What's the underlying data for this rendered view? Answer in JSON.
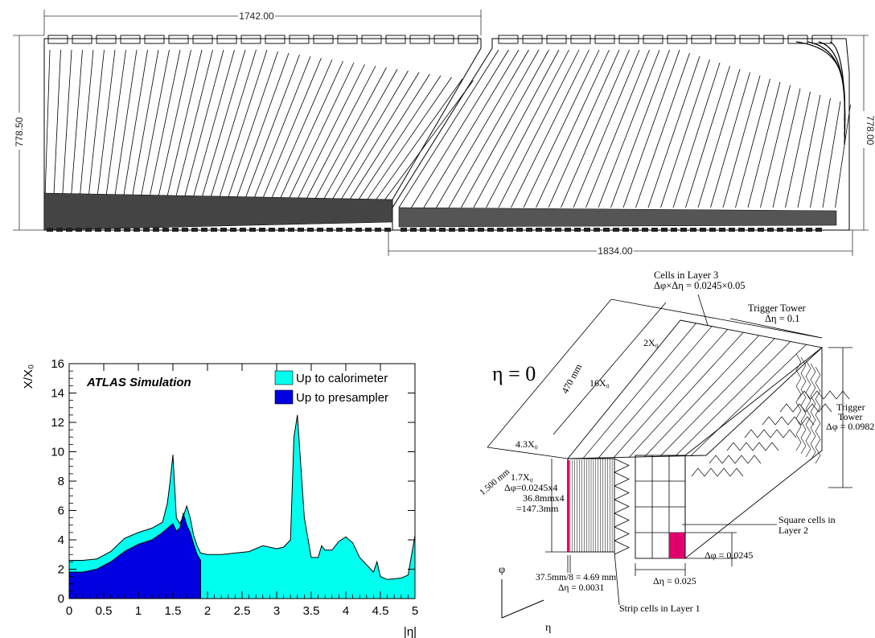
{
  "top_drawing": {
    "dim_top": "1742.00",
    "dim_left": "778.50",
    "dim_right": "778.00",
    "dim_bottom": "1834.00"
  },
  "colors": {
    "calorimeter": "#00ffee",
    "presampler": "#0000e0",
    "highlight": "#e0006b"
  },
  "chart_data": {
    "type": "area",
    "ylabel": "X/X₀",
    "xlabel": "|η|",
    "annotation": "ATLAS Simulation",
    "xlim": [
      0,
      5
    ],
    "ylim": [
      0,
      16
    ],
    "xticks": [
      "0",
      "0.5",
      "1",
      "1.5",
      "2",
      "2.5",
      "3",
      "3.5",
      "4",
      "4.5",
      "5"
    ],
    "yticks": [
      "0",
      "2",
      "4",
      "6",
      "8",
      "10",
      "12",
      "14",
      "16"
    ],
    "legend_position": "top-right",
    "series": [
      {
        "name": "Up to calorimeter",
        "x": [
          0,
          0.2,
          0.4,
          0.6,
          0.8,
          1.0,
          1.2,
          1.35,
          1.42,
          1.46,
          1.5,
          1.55,
          1.6,
          1.65,
          1.7,
          1.75,
          1.8,
          1.85,
          1.9,
          2.0,
          2.2,
          2.4,
          2.6,
          2.8,
          3.0,
          3.1,
          3.2,
          3.25,
          3.3,
          3.35,
          3.4,
          3.5,
          3.6,
          3.65,
          3.7,
          3.8,
          3.9,
          4.0,
          4.1,
          4.2,
          4.3,
          4.4,
          4.45,
          4.5,
          4.6,
          4.8,
          4.9,
          5.0
        ],
        "values": [
          2.6,
          2.6,
          2.7,
          3.2,
          4.1,
          4.5,
          4.8,
          5.2,
          6.5,
          8.0,
          9.8,
          5.5,
          5.1,
          5.6,
          6.3,
          5.5,
          4.3,
          3.6,
          3.1,
          3.0,
          3.0,
          3.1,
          3.2,
          3.6,
          3.4,
          3.5,
          4.0,
          11.0,
          12.5,
          9.0,
          5.5,
          2.8,
          2.8,
          3.6,
          3.3,
          3.3,
          3.9,
          4.2,
          3.8,
          2.8,
          2.3,
          1.8,
          2.5,
          1.5,
          1.3,
          1.4,
          1.6,
          4.3
        ]
      },
      {
        "name": "Up to presampler",
        "x": [
          0,
          0.2,
          0.4,
          0.6,
          0.8,
          1.0,
          1.2,
          1.35,
          1.45,
          1.5,
          1.55,
          1.6,
          1.65,
          1.7,
          1.75,
          1.8,
          1.85,
          1.9
        ],
        "values": [
          1.8,
          1.8,
          2.0,
          2.5,
          3.2,
          3.7,
          4.0,
          4.5,
          4.9,
          5.1,
          4.6,
          4.8,
          5.8,
          5.0,
          4.5,
          3.7,
          3.0,
          2.6
        ]
      }
    ]
  },
  "module_sketch": {
    "eta_label": "η = 0",
    "cells_layer3_title": "Cells in Layer 3",
    "cells_layer3_size": "Δφ×Δη  = 0.0245×0.05",
    "trigger_tower_top_1": "Trigger Tower",
    "trigger_tower_top_2": "Δη = 0.1",
    "trigger_tower_side_1": "Trigger",
    "trigger_tower_side_2": "Tower",
    "trigger_tower_side_3": "Δφ = 0.0982",
    "x2": "2X₀",
    "len_470": "470 mm",
    "x16": "16X₀",
    "x43": "4.3X₀",
    "len_1500": "1.500 mm",
    "x17": "1.7X₀",
    "dphi_strip": "Δφ=0.0245x4",
    "strip_len": "36.8mmx4",
    "strip_total": "=147.3mm",
    "square_1": "Square cells in",
    "square_2": "Layer 2",
    "dphi_0245": "Δφ = 0.0245",
    "deta_025": "Δη = 0.025",
    "strip_width": "37.5mm/8 = 4.69 mm",
    "deta_0031": "Δη = 0.0031",
    "strip_cells": "Strip cells in Layer 1",
    "axis_phi": "φ",
    "axis_eta": "η"
  }
}
